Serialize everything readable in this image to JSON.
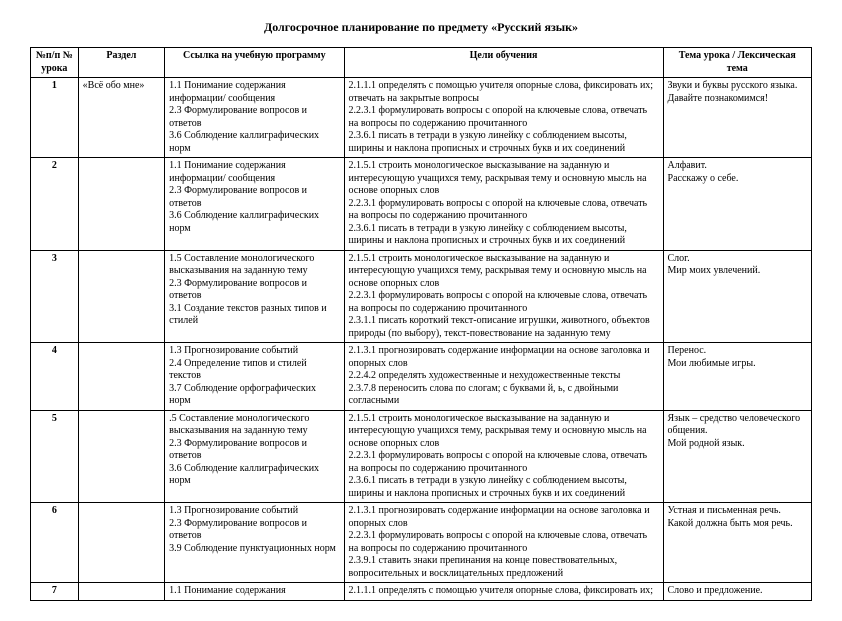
{
  "title": "Долгосрочное планирование по предмету «Русский язык»",
  "headers": {
    "num": "№п/п\n№ урока",
    "section": "Раздел",
    "ref": "Ссылка на учебную программу",
    "goals": "Цели обучения",
    "topic": "Тема урока / Лексическая тема"
  },
  "rows": [
    {
      "num": "1",
      "section": "«Всё обо мне»",
      "ref": "1.1 Понимание содержания информации/ сообщения\n2.3 Формулирование вопросов и ответов\n3.6 Соблюдение каллиграфических норм",
      "goals": "2.1.1.1 определять с помощью учителя опорные слова, фиксировать их; отвечать на закрытые вопросы\n2.2.3.1 формулировать вопросы с опорой на ключевые слова, отвечать на вопросы по содержанию прочитанного\n2.3.6.1 писать в тетради в узкую линейку с соблюдением высоты, ширины и наклона прописных и строчных букв и их соединений",
      "topic": "Звуки и буквы русского языка.\nДавайте познакомимся!"
    },
    {
      "num": "2",
      "section": "",
      "ref": "1.1 Понимание содержания информации/ сообщения\n2.3 Формулирование вопросов и ответов\n3.6 Соблюдение каллиграфических норм",
      "goals": "2.1.5.1 строить монологическое высказывание на заданную и интересующую учащихся тему, раскрывая тему и основную мысль на основе опорных слов\n2.2.3.1 формулировать вопросы с опорой на ключевые слова, отвечать на вопросы по содержанию прочитанного\n2.3.6.1 писать в тетради в узкую линейку с соблюдением высоты, ширины и наклона прописных и строчных букв и их соединений",
      "topic": "Алфавит.\nРасскажу о себе."
    },
    {
      "num": "3",
      "section": "",
      "ref": "1.5 Составление монологического высказывания на заданную тему\n2.3 Формулирование вопросов и ответов\n3.1 Создание текстов разных типов и стилей",
      "goals": "2.1.5.1 строить монологическое высказывание на заданную и интересующую учащихся тему, раскрывая тему и основную мысль на основе опорных слов\n2.2.3.1 формулировать вопросы с опорой на ключевые слова, отвечать на вопросы по содержанию прочитанного\n2.3.1.1 писать короткий текст-описание игрушки, животного, объектов природы (по выбору), текст-повествование на заданную тему",
      "topic": "Слог.\nМир моих увлечений."
    },
    {
      "num": "4",
      "section": "",
      "ref": "1.3 Прогнозирование событий\n2.4 Определение типов и стилей текстов\n3.7 Соблюдение орфографических норм",
      "goals": "2.1.3.1 прогнозировать содержание информации на основе заголовка и опорных слов\n2.2.4.2 определять художественные и нехудожественные тексты\n2.3.7.8 переносить слова по слогам; с буквами й, ь, с двойными согласными",
      "topic": "Перенос.\nМои любимые игры."
    },
    {
      "num": "5",
      "section": "",
      "ref": ".5 Составление монологического высказывания на заданную тему\n2.3 Формулирование вопросов и ответов\n3.6 Соблюдение каллиграфических норм",
      "goals": "2.1.5.1 строить монологическое высказывание на заданную и интересующую учащихся тему, раскрывая тему и основную мысль на основе опорных слов\n2.2.3.1 формулировать вопросы с опорой на ключевые слова, отвечать на вопросы по содержанию прочитанного\n2.3.6.1 писать в тетради в узкую линейку с соблюдением высоты, ширины и наклона прописных и строчных букв и их соединений",
      "topic": "Язык – средство человеческого общения.\nМой родной язык."
    },
    {
      "num": "6",
      "section": "",
      "ref": "1.3 Прогнозирование событий\n2.3 Формулирование вопросов и ответов\n3.9 Соблюдение пунктуационных норм",
      "goals": "2.1.3.1 прогнозировать содержание информации на основе заголовка и опорных слов\n2.2.3.1 формулировать вопросы с опорой на ключевые слова, отвечать на вопросы по содержанию прочитанного\n2.3.9.1 ставить знаки препинания на конце повествовательных, вопросительных и восклицательных предложений",
      "topic": "Устная и письменная речь.\nКакой должна быть моя речь."
    },
    {
      "num": "7",
      "section": "",
      "ref": "1.1 Понимание содержания",
      "goals": "2.1.1.1 определять с помощью учителя опорные слова, фиксировать их;",
      "topic": "Слово и предложение."
    }
  ]
}
